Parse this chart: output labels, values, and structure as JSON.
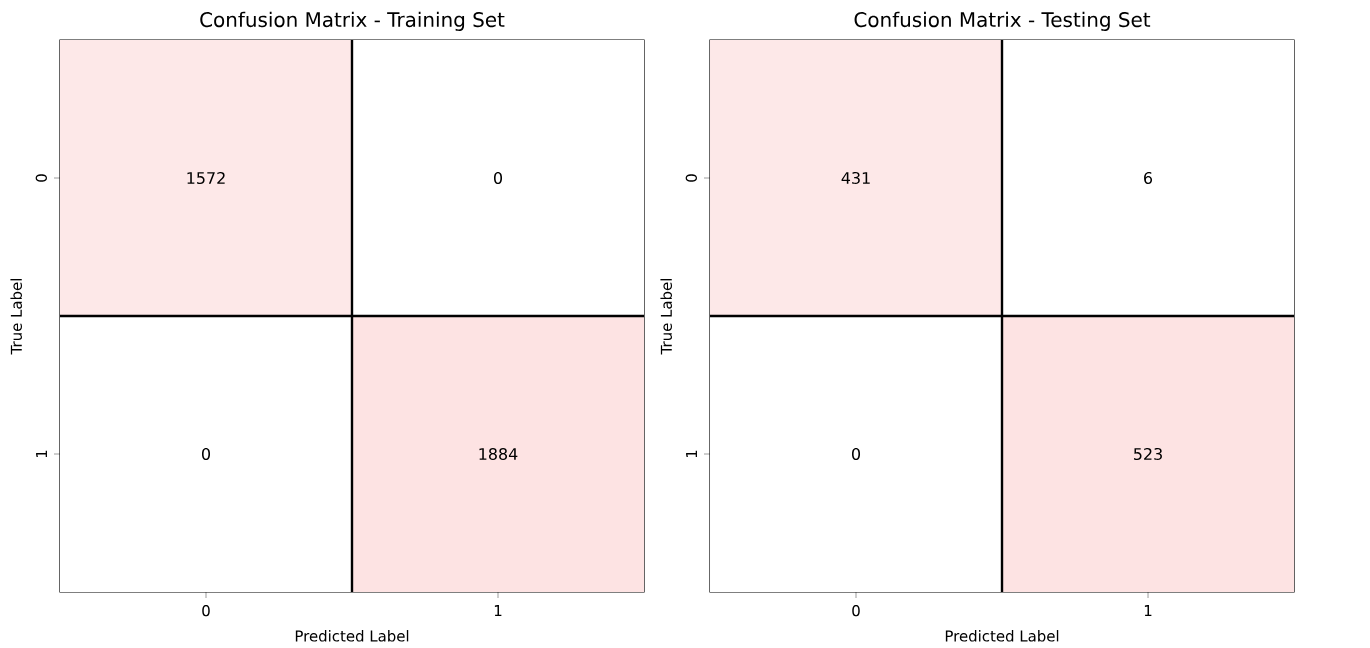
{
  "chart_data": [
    {
      "type": "heatmap",
      "title": "Confusion Matrix - Training Set",
      "xlabel": "Predicted Label",
      "ylabel": "True Label",
      "categories": [
        "0",
        "1"
      ],
      "y_categories": [
        "0",
        "1"
      ],
      "color": "#fde3e3",
      "data_labels": true,
      "cells": [
        [
          1572,
          0
        ],
        [
          0,
          1884
        ]
      ]
    },
    {
      "type": "heatmap",
      "title": "Confusion Matrix - Testing Set",
      "xlabel": "Predicted Label",
      "ylabel": "True Label",
      "categories": [
        "0",
        "1"
      ],
      "y_categories": [
        "0",
        "1"
      ],
      "color": "#fde3e3",
      "data_labels": true,
      "cells": [
        [
          431,
          6
        ],
        [
          0,
          523
        ]
      ]
    }
  ]
}
